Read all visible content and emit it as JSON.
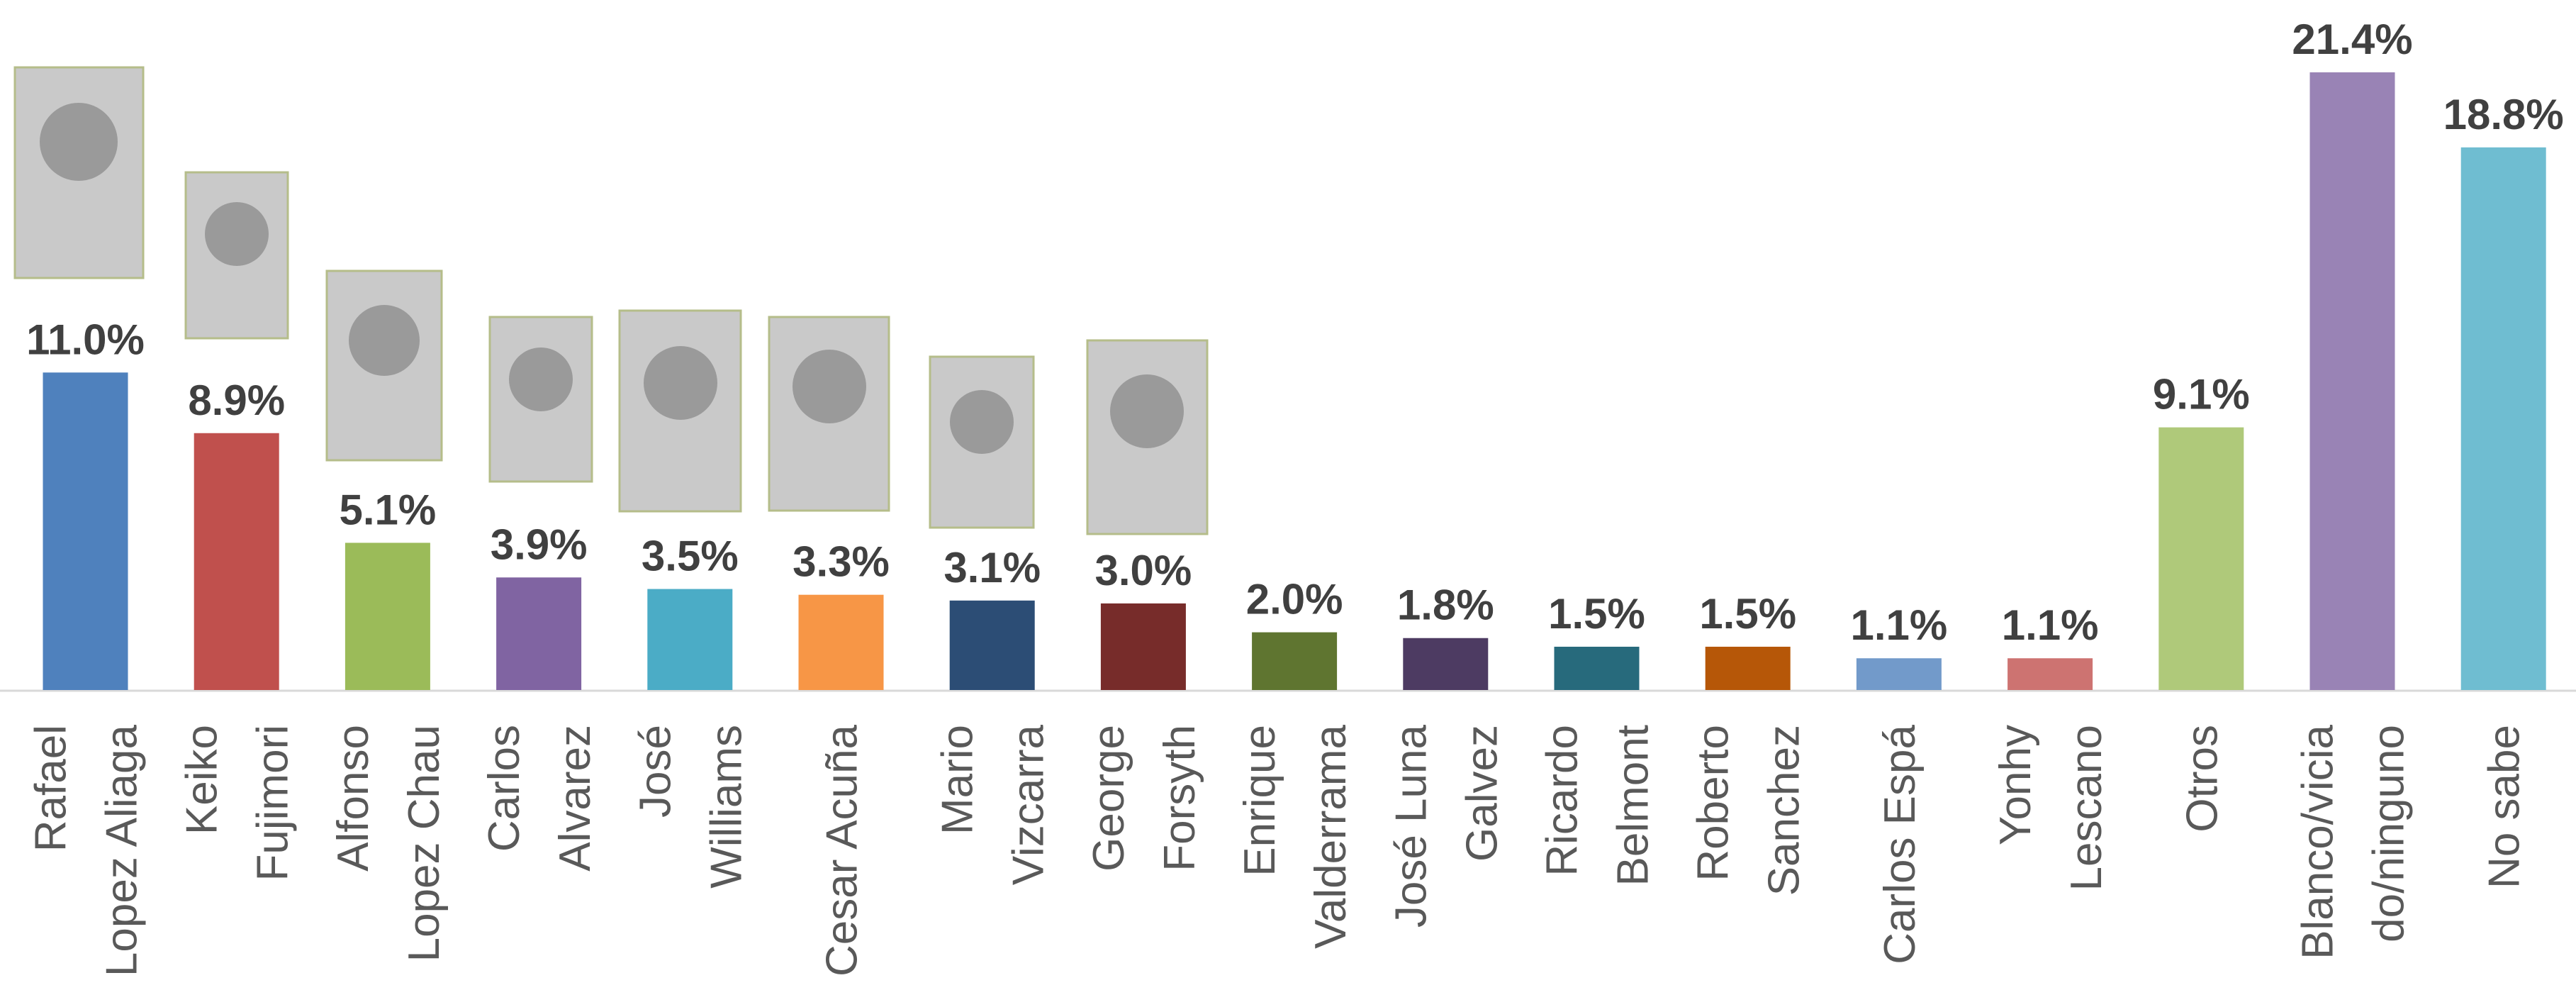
{
  "chart_data": {
    "type": "bar",
    "categories": [
      [
        "Rafael",
        "Lopez Aliaga"
      ],
      [
        "Keiko",
        "Fujimori"
      ],
      [
        "Alfonso",
        "Lopez Chau"
      ],
      [
        "Carlos",
        "Alvarez"
      ],
      [
        "José",
        "Williams"
      ],
      [
        "Cesar Acuña"
      ],
      [
        "Mario",
        "Vizcarra"
      ],
      [
        "George",
        "Forsyth"
      ],
      [
        "Enrique",
        "Valderrama"
      ],
      [
        "José Luna",
        "Galvez"
      ],
      [
        "Ricardo",
        "Belmont"
      ],
      [
        "Roberto",
        "Sanchez"
      ],
      [
        "Carlos Espá"
      ],
      [
        "Yonhy",
        "Lescano"
      ],
      [
        "Otros"
      ],
      [
        "Blanco/vicia",
        "do/ninguno"
      ],
      [
        "No sabe"
      ]
    ],
    "values": [
      11.0,
      8.9,
      5.1,
      3.9,
      3.5,
      3.3,
      3.1,
      3.0,
      2.0,
      1.8,
      1.5,
      1.5,
      1.1,
      1.1,
      9.1,
      21.4,
      18.8
    ],
    "value_labels": [
      "11.0%",
      "8.9%",
      "5.1%",
      "3.9%",
      "3.5%",
      "3.3%",
      "3.1%",
      "3.0%",
      "2.0%",
      "1.8%",
      "1.5%",
      "1.5%",
      "1.1%",
      "1.1%",
      "9.1%",
      "21.4%",
      "18.8%"
    ],
    "colors": [
      "#4f81bd",
      "#c0504d",
      "#9bbb59",
      "#8064a2",
      "#4bacc6",
      "#f79646",
      "#2c4d75",
      "#772c2a",
      "#5f7530",
      "#4d3b62",
      "#276a7c",
      "#b65708",
      "#729aca",
      "#cd7371",
      "#afc97a",
      "#9983b5",
      "#6fbdd1"
    ]
  }
}
